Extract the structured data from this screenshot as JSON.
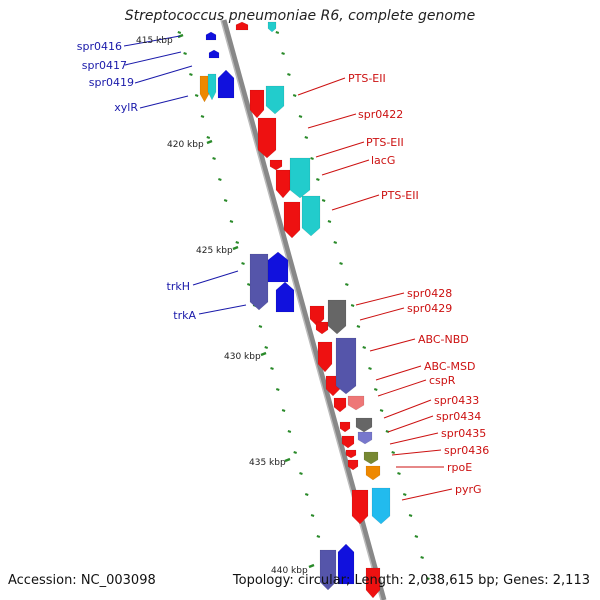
{
  "title": "Streptococcus pneumoniae R6, complete genome",
  "footer": {
    "accession": "Accession: NC_003098",
    "topology": "Topology: circular; Length: 2,038,615 bp; Genes: 2,113"
  },
  "colors": {
    "backbone": "#888888",
    "tick": "#2a8a2a",
    "red": "#ee1111",
    "cyan": "#22cccc",
    "blue": "#1111dd",
    "navy": "#5555aa",
    "gray": "#666666",
    "orange": "#ee8800",
    "olive": "#778833",
    "pink": "#ee7777",
    "purple": "#7777cc",
    "sky": "#22bbee",
    "left_label": "#1a1aaa",
    "right_label": "#cc1111"
  },
  "scale_labels": [
    {
      "text": "415 kbp",
      "kbp": 415
    },
    {
      "text": "420 kbp",
      "kbp": 420
    },
    {
      "text": "425 kbp",
      "kbp": 425
    },
    {
      "text": "430 kbp",
      "kbp": 430
    },
    {
      "text": "435 kbp",
      "kbp": 435
    },
    {
      "text": "440 kbp",
      "kbp": 440
    }
  ],
  "left_labels": [
    "spr0416",
    "spr0417",
    "spr0419",
    "xylR",
    "trkH",
    "trkA"
  ],
  "right_labels": [
    "PTS-EII",
    "spr0422",
    "PTS-EII",
    "lacG",
    "PTS-EII",
    "spr0428",
    "spr0429",
    "ABC-NBD",
    "ABC-MSD",
    "cspR",
    "spr0433",
    "spr0434",
    "spr0435",
    "spr0436",
    "rpoE",
    "pyrG"
  ]
}
